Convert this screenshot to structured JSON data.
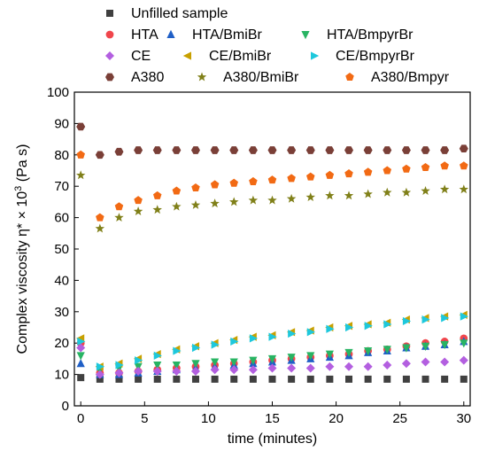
{
  "chart_data": {
    "type": "scatter",
    "xlabel": "time (minutes)",
    "ylabel_main": "Complex viscosity η* × 10",
    "ylabel_sup": "3",
    "ylabel_unit": " (Pa s)",
    "xlim": [
      -0.5,
      30.5
    ],
    "ylim": [
      0,
      100
    ],
    "x_ticks": [
      0,
      5,
      10,
      15,
      20,
      25,
      30
    ],
    "y_ticks": [
      0,
      10,
      20,
      30,
      40,
      50,
      60,
      70,
      80,
      90,
      100
    ],
    "grid": false,
    "legend_position": "top",
    "series": [
      {
        "name": "Unfilled sample",
        "marker": "square",
        "color": "#404040",
        "x": [
          0,
          1.5,
          3,
          4.5,
          6,
          7.5,
          9,
          10.5,
          12,
          13.5,
          15,
          16.5,
          18,
          19.5,
          21,
          22.5,
          24,
          25.5,
          27,
          28.5,
          30
        ],
        "y": [
          9,
          8.5,
          8.5,
          8.5,
          8.5,
          8.5,
          8.5,
          8.5,
          8.5,
          8.5,
          8.5,
          8.5,
          8.5,
          8.5,
          8.5,
          8.5,
          8.5,
          8.5,
          8.5,
          8.5,
          8.5
        ]
      },
      {
        "name": "HTA",
        "marker": "circle",
        "color": "#f0464c",
        "x": [
          0,
          1.5,
          3,
          4.5,
          6,
          7.5,
          9,
          10.5,
          12,
          13.5,
          15,
          16.5,
          18,
          19.5,
          21,
          22.5,
          24,
          25.5,
          27,
          28.5,
          30
        ],
        "y": [
          20,
          10.5,
          10.5,
          11,
          11.5,
          12,
          12.5,
          13,
          13.5,
          14,
          14.5,
          15,
          15.5,
          16,
          16.5,
          17.5,
          18,
          19,
          20,
          20.5,
          21.5
        ]
      },
      {
        "name": "HTA/BmiBr",
        "marker": "triangle",
        "color": "#1f5fc6",
        "x": [
          0,
          1.5,
          3,
          4.5,
          6,
          7.5,
          9,
          10.5,
          12,
          13.5,
          15,
          16.5,
          18,
          19.5,
          21,
          22.5,
          24,
          25.5,
          27,
          28.5,
          30
        ],
        "y": [
          13.5,
          10,
          10,
          10.5,
          11,
          11.5,
          12,
          12.5,
          13,
          13.5,
          14,
          14.5,
          15,
          15.5,
          16,
          17,
          17.5,
          18.5,
          19,
          19.5,
          20.5
        ]
      },
      {
        "name": "HTA/BmpyrBr",
        "marker": "triangle-down",
        "color": "#28b463",
        "x": [
          0,
          1.5,
          3,
          4.5,
          6,
          7.5,
          9,
          10.5,
          12,
          13.5,
          15,
          16.5,
          18,
          19.5,
          21,
          22.5,
          24,
          25.5,
          27,
          28.5,
          30
        ],
        "y": [
          16,
          11.5,
          12,
          12.5,
          13,
          13,
          13.5,
          14,
          14,
          14.5,
          15,
          15.5,
          16,
          16.5,
          17,
          17.5,
          18,
          18.5,
          19,
          19.5,
          20
        ]
      },
      {
        "name": "CE",
        "marker": "diamond",
        "color": "#b35fe0",
        "x": [
          0,
          1.5,
          3,
          4.5,
          6,
          7.5,
          9,
          10.5,
          12,
          13.5,
          15,
          16.5,
          18,
          19.5,
          21,
          22.5,
          24,
          25.5,
          27,
          28.5,
          30
        ],
        "y": [
          18.5,
          10,
          10.5,
          11,
          11,
          11,
          11,
          11.5,
          11.5,
          11.5,
          12,
          12,
          12,
          12.5,
          12.5,
          12.5,
          13,
          13.5,
          14,
          14,
          14.5
        ]
      },
      {
        "name": "CE/BmiBr",
        "marker": "triangle-left",
        "color": "#c8a000",
        "x": [
          0,
          1.5,
          3,
          4.5,
          6,
          7.5,
          9,
          10.5,
          12,
          13.5,
          15,
          16.5,
          18,
          19.5,
          21,
          22.5,
          24,
          25.5,
          27,
          28.5,
          30
        ],
        "y": [
          21.5,
          12.5,
          13.5,
          15,
          16.5,
          18,
          19,
          20,
          21,
          22,
          22.5,
          23.5,
          24,
          25,
          25.5,
          26,
          26.5,
          27.5,
          28,
          28.5,
          29
        ]
      },
      {
        "name": "CE/BmpyrBr",
        "marker": "triangle-right",
        "color": "#1ec8dc",
        "x": [
          0,
          1.5,
          3,
          4.5,
          6,
          7.5,
          9,
          10.5,
          12,
          13.5,
          15,
          16.5,
          18,
          19.5,
          21,
          22.5,
          24,
          25.5,
          27,
          28.5,
          30
        ],
        "y": [
          20.5,
          12.5,
          13,
          14.5,
          16,
          17.5,
          18.5,
          19.5,
          20.5,
          21.5,
          22,
          23,
          23.5,
          24.5,
          25,
          25.5,
          26,
          27,
          27.5,
          28,
          28.5
        ]
      },
      {
        "name": "A380",
        "marker": "hexagon",
        "color": "#7a3f37",
        "x": [
          0,
          1.5,
          3,
          4.5,
          6,
          7.5,
          9,
          10.5,
          12,
          13.5,
          15,
          16.5,
          18,
          19.5,
          21,
          22.5,
          24,
          25.5,
          27,
          28.5,
          30
        ],
        "y": [
          89,
          80,
          81,
          81.5,
          81.5,
          81.5,
          81.5,
          81.5,
          81.5,
          81.5,
          81.5,
          81.5,
          81.5,
          81.5,
          81.5,
          81.5,
          81.5,
          81.5,
          81.5,
          81.5,
          82
        ]
      },
      {
        "name": "A380/BmiBr",
        "marker": "star",
        "color": "#808019",
        "x": [
          0,
          1.5,
          3,
          4.5,
          6,
          7.5,
          9,
          10.5,
          12,
          13.5,
          15,
          16.5,
          18,
          19.5,
          21,
          22.5,
          24,
          25.5,
          27,
          28.5,
          30
        ],
        "y": [
          73.5,
          56.5,
          60,
          62,
          62.5,
          63.5,
          64,
          64.5,
          65,
          65.5,
          65.5,
          66,
          66.5,
          67,
          67,
          67.5,
          68,
          68,
          68.5,
          69,
          69
        ]
      },
      {
        "name": "A380/Bmpyr",
        "marker": "pentagon",
        "color": "#f26a14",
        "x": [
          0,
          1.5,
          3,
          4.5,
          6,
          7.5,
          9,
          10.5,
          12,
          13.5,
          15,
          16.5,
          18,
          19.5,
          21,
          22.5,
          24,
          25.5,
          27,
          28.5,
          30
        ],
        "y": [
          80,
          60,
          63.5,
          65.5,
          67,
          68.5,
          69.5,
          70.5,
          71,
          71.5,
          72,
          72.5,
          73,
          73.5,
          74,
          74.5,
          75,
          75.5,
          76,
          76.5,
          76.5
        ]
      }
    ]
  }
}
